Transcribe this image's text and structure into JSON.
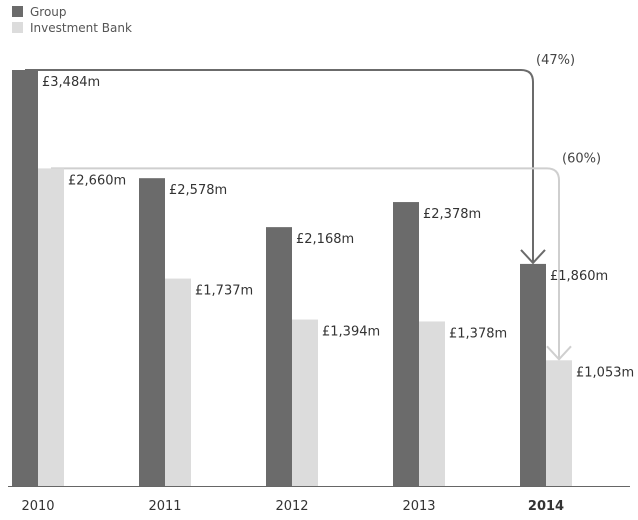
{
  "chart_data": {
    "type": "bar",
    "categories": [
      "2010",
      "2011",
      "2012",
      "2013",
      "2014"
    ],
    "highlight_category": "2014",
    "series": [
      {
        "name": "Group",
        "color": "#6b6b6b",
        "values": [
          3484,
          2578,
          2168,
          2378,
          1860
        ],
        "labels": [
          "£3,484m",
          "£2,578m",
          "£2,168m",
          "£2,378m",
          "£1,860m"
        ]
      },
      {
        "name": "Investment Bank",
        "color": "#dcdcdc",
        "values": [
          2660,
          1737,
          1394,
          1378,
          1053
        ],
        "labels": [
          "£2,660m",
          "£1,737m",
          "£1,394m",
          "£1,378m",
          "£1,053m"
        ]
      }
    ],
    "annotations": [
      {
        "series": "Group",
        "from": "2010",
        "to": "2014",
        "text": "(47%)",
        "color": "#6b6b6b"
      },
      {
        "series": "Investment Bank",
        "from": "2010",
        "to": "2014",
        "text": "(60%)",
        "color": "#cfcfcf"
      }
    ],
    "ylim": [
      0,
      3484
    ],
    "grid": false,
    "legend_position": "top-left"
  }
}
